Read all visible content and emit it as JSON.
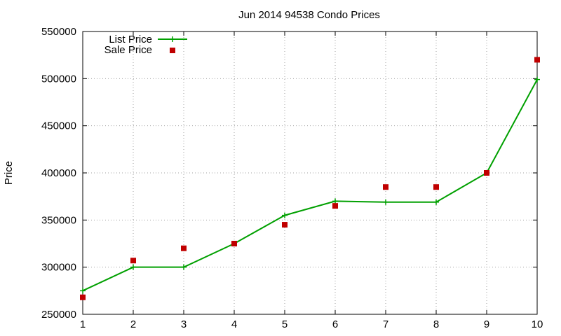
{
  "chart_data": {
    "type": "line",
    "title": "Jun 2014 94538 Condo Prices",
    "xlabel": "",
    "ylabel": "Price",
    "x": [
      1,
      2,
      3,
      4,
      5,
      6,
      7,
      8,
      9,
      10
    ],
    "xlim": [
      1,
      10
    ],
    "ylim": [
      250000,
      550000
    ],
    "xticks": [
      "1",
      "2",
      "3",
      "4",
      "5",
      "6",
      "7",
      "8",
      "9",
      "10"
    ],
    "yticks": [
      "250000",
      "300000",
      "350000",
      "400000",
      "450000",
      "500000",
      "550000"
    ],
    "grid": true,
    "legend_position": "top-left",
    "series": [
      {
        "name": "List Price",
        "style": "line with + markers",
        "color": "#00a000",
        "values": [
          275000,
          300000,
          300000,
          325000,
          355000,
          370000,
          369000,
          369000,
          400000,
          499000
        ]
      },
      {
        "name": "Sale Price",
        "style": "square points",
        "color": "#c00000",
        "values": [
          268000,
          307000,
          320000,
          325000,
          345000,
          365000,
          385000,
          385000,
          400000,
          520000
        ]
      }
    ]
  }
}
